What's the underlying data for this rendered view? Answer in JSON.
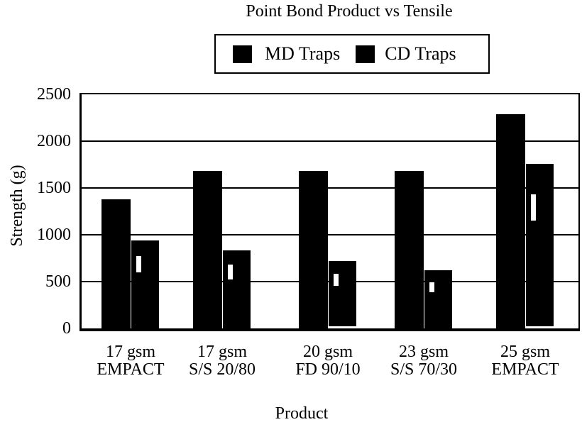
{
  "chart_data": {
    "type": "bar",
    "title": "Point Bond Product vs Tensile",
    "xlabel": "Product",
    "ylabel": "Strength (g)",
    "ylim": [
      0,
      2500
    ],
    "yticks": [
      0,
      500,
      1000,
      1500,
      2000,
      2500
    ],
    "grid": "horizontal",
    "legend_position": "top-center",
    "bar_color": "#000000",
    "background_color": "#ffffff",
    "categories": [
      "17 gsm EMPACT",
      "17 gsm S/S 20/80",
      "20 gsm FD 90/10",
      "23 gsm S/S 70/30",
      "25 gsm EMPACT"
    ],
    "category_lines": [
      [
        "17 gsm",
        "EMPACT"
      ],
      [
        "17 gsm",
        "S/S 20/80"
      ],
      [
        "20 gsm",
        "FD 90/10"
      ],
      [
        "23 gsm",
        "S/S 70/30"
      ],
      [
        "25 gsm",
        "EMPACT"
      ]
    ],
    "series": [
      {
        "name": "MD Traps",
        "values": [
          1380,
          1680,
          1680,
          1680,
          2290
        ]
      },
      {
        "name": "CD Traps",
        "values": [
          940,
          830,
          720,
          620,
          1760
        ],
        "error_marks": [
          [
            600,
            775
          ],
          [
            525,
            685
          ],
          [
            458,
            586
          ],
          [
            390,
            495
          ],
          [
            1156,
            1434
          ]
        ],
        "baseline_gaps": [
          false,
          false,
          true,
          false,
          true
        ]
      }
    ]
  }
}
